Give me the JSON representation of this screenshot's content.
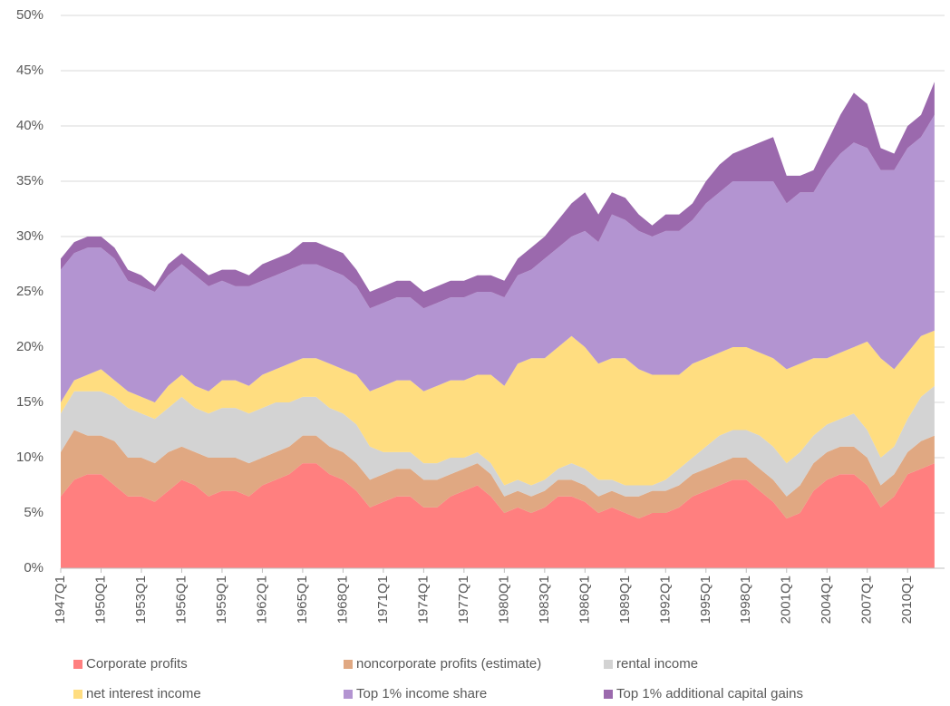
{
  "chart_data": {
    "type": "stacked_area",
    "categories": [
      "1947Q1",
      null,
      null,
      "1950Q1",
      null,
      null,
      "1953Q1",
      null,
      null,
      "1956Q1",
      null,
      null,
      "1959Q1",
      null,
      null,
      "1962Q1",
      null,
      null,
      "1965Q1",
      null,
      null,
      "1968Q1",
      null,
      null,
      "1971Q1",
      null,
      null,
      "1974Q1",
      null,
      null,
      "1977Q1",
      null,
      null,
      "1980Q1",
      null,
      null,
      "1983Q1",
      null,
      null,
      "1986Q1",
      null,
      null,
      "1989Q1",
      null,
      null,
      "1992Q1",
      null,
      null,
      "1995Q1",
      null,
      null,
      "1998Q1",
      null,
      null,
      "2001Q1",
      null,
      null,
      "2004Q1",
      null,
      null,
      "2007Q1",
      null,
      null,
      "2010Q1",
      null,
      null
    ],
    "series": [
      {
        "name": "Corporate profits",
        "color": "#ff7f7f",
        "values": [
          6.5,
          8,
          8.5,
          8.5,
          7.5,
          6.5,
          6.5,
          6,
          7,
          8,
          7.5,
          6.5,
          7,
          7,
          6.5,
          7.5,
          8,
          8.5,
          9.5,
          9.5,
          8.5,
          8,
          7,
          5.5,
          6,
          6.5,
          6.5,
          5.5,
          5.5,
          6.5,
          7,
          7.5,
          6.5,
          5,
          5.5,
          5,
          5.5,
          6.5,
          6.5,
          6,
          5,
          5.5,
          5,
          4.5,
          5,
          5,
          5.5,
          6.5,
          7,
          7.5,
          8,
          8,
          7,
          6,
          4.5,
          5,
          7,
          8,
          8.5,
          8.5,
          7.5,
          5.5,
          6.5,
          8.5,
          9,
          9.5
        ]
      },
      {
        "name": "noncorporate profits (estimate)",
        "color": "#e0a882",
        "values": [
          4,
          4.5,
          3.5,
          3.5,
          4,
          3.5,
          3.5,
          3.5,
          3.5,
          3,
          3,
          3.5,
          3,
          3,
          3,
          2.5,
          2.5,
          2.5,
          2.5,
          2.5,
          2.5,
          2.5,
          2.5,
          2.5,
          2.5,
          2.5,
          2.5,
          2.5,
          2.5,
          2,
          2,
          2,
          2,
          1.5,
          1.5,
          1.5,
          1.5,
          1.5,
          1.5,
          1.5,
          1.5,
          1.5,
          1.5,
          2,
          2,
          2,
          2,
          2,
          2,
          2,
          2,
          2,
          2,
          2,
          2,
          2.5,
          2.5,
          2.5,
          2.5,
          2.5,
          2.5,
          2,
          2,
          2,
          2.5,
          2.5
        ]
      },
      {
        "name": "rental income",
        "color": "#d3d3d3",
        "values": [
          3.5,
          3.5,
          4,
          4,
          4,
          4.5,
          4,
          4,
          4,
          4.5,
          4,
          4,
          4.5,
          4.5,
          4.5,
          4.5,
          4.5,
          4,
          3.5,
          3.5,
          3.5,
          3.5,
          3.5,
          3,
          2,
          1.5,
          1.5,
          1.5,
          1.5,
          1.5,
          1,
          1,
          1,
          1,
          1,
          1,
          1,
          1,
          1.5,
          1.5,
          1.5,
          1,
          1,
          1,
          0.5,
          1,
          1.5,
          1.5,
          2,
          2.5,
          2.5,
          2.5,
          3,
          3,
          3,
          3,
          2.5,
          2.5,
          2.5,
          3,
          2.5,
          2.5,
          2.5,
          3,
          4,
          4.5
        ]
      },
      {
        "name": "net interest income",
        "color": "#ffdd80",
        "values": [
          1,
          1,
          1.5,
          2,
          1.5,
          1.5,
          1.5,
          1.5,
          2,
          2,
          2,
          2,
          2.5,
          2.5,
          2.5,
          3,
          3,
          3.5,
          3.5,
          3.5,
          4,
          4,
          4.5,
          5,
          6,
          6.5,
          6.5,
          6.5,
          7,
          7,
          7,
          7,
          8,
          9,
          10.5,
          11.5,
          11,
          11,
          11.5,
          11,
          10.5,
          11,
          11.5,
          10.5,
          10,
          9.5,
          8.5,
          8.5,
          8,
          7.5,
          7.5,
          7.5,
          7.5,
          8,
          8.5,
          8,
          7,
          6,
          6,
          6,
          8,
          9,
          7,
          6,
          5.5,
          5
        ]
      },
      {
        "name": "Top 1% income share",
        "color": "#b394d1",
        "values": [
          12,
          11.5,
          11.5,
          11,
          11,
          10,
          10,
          10,
          10,
          10,
          10,
          9.5,
          9,
          8.5,
          9,
          8.5,
          8.5,
          8.5,
          8.5,
          8.5,
          8.5,
          8.5,
          8,
          7.5,
          7.5,
          7.5,
          7.5,
          7.5,
          7.5,
          7.5,
          7.5,
          7.5,
          7.5,
          8,
          8,
          8,
          9,
          9,
          9,
          10.5,
          11,
          13,
          12.5,
          12.5,
          12.5,
          13,
          13,
          13,
          14,
          14.5,
          15,
          15,
          15.5,
          16,
          15,
          15.5,
          15,
          17,
          18,
          18.5,
          17.5,
          17,
          18,
          18.5,
          18,
          19.5
        ]
      },
      {
        "name": "Top 1% additional capital gains",
        "color": "#9b69ad",
        "values": [
          1,
          1,
          1,
          1,
          1,
          1,
          1,
          0.5,
          1,
          1,
          1,
          1,
          1,
          1.5,
          1,
          1.5,
          1.5,
          1.5,
          2,
          2,
          2,
          2,
          1.5,
          1.5,
          1.5,
          1.5,
          1.5,
          1.5,
          1.5,
          1.5,
          1.5,
          1.5,
          1.5,
          1.5,
          1.5,
          2,
          2,
          2.5,
          3,
          3.5,
          2.5,
          2,
          2,
          1.5,
          1,
          1.5,
          1.5,
          1.5,
          2,
          2.5,
          2.5,
          3,
          3.5,
          4,
          2.5,
          1.5,
          2,
          2.5,
          3.5,
          4.5,
          4,
          2,
          1.5,
          2,
          2,
          3
        ]
      }
    ],
    "ylim": [
      0,
      50
    ],
    "yticks": [
      {
        "value": 0,
        "label": "0%"
      },
      {
        "value": 5,
        "label": "5%"
      },
      {
        "value": 10,
        "label": "10%"
      },
      {
        "value": 15,
        "label": "15%"
      },
      {
        "value": 20,
        "label": "20%"
      },
      {
        "value": 25,
        "label": "25%"
      },
      {
        "value": 30,
        "label": "30%"
      },
      {
        "value": 35,
        "label": "35%"
      },
      {
        "value": 40,
        "label": "40%"
      },
      {
        "value": 45,
        "label": "45%"
      },
      {
        "value": 50,
        "label": "50%"
      }
    ],
    "grid": true,
    "legend": "bottom"
  }
}
